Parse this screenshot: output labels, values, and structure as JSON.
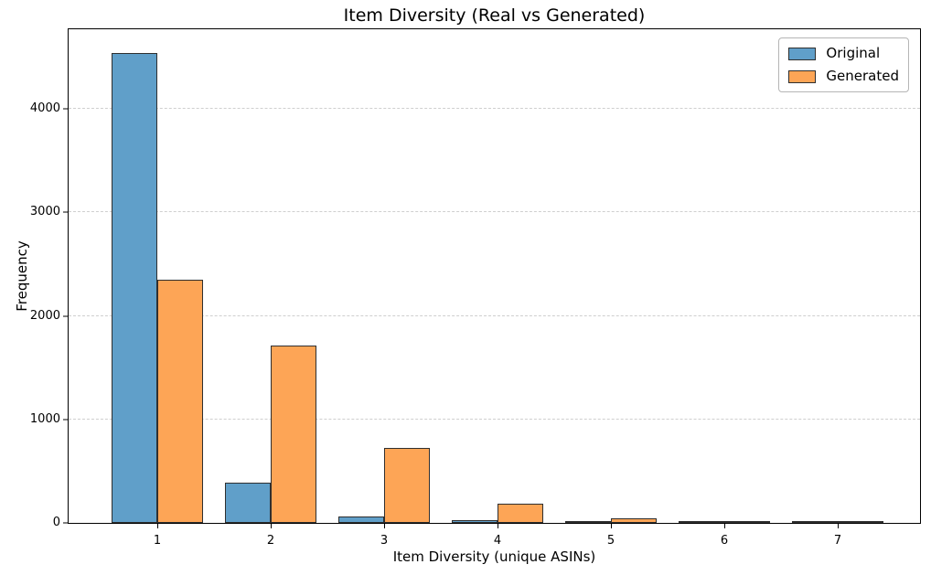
{
  "chart_data": {
    "type": "bar",
    "subtype": "grouped-histogram",
    "title": "Item Diversity (Real vs Generated)",
    "xlabel": "Item Diversity (unique ASINs)",
    "ylabel": "Frequency",
    "categories": [
      "1",
      "2",
      "3",
      "4",
      "5",
      "6",
      "7"
    ],
    "series": [
      {
        "name": "Original",
        "color": "#609fc9",
        "edge_color": "#2f2f2f",
        "values": [
          4540,
          390,
          65,
          25,
          16,
          14,
          2
        ]
      },
      {
        "name": "Generated",
        "color": "#fda556",
        "edge_color": "#2f2f2f",
        "values": [
          2350,
          1710,
          725,
          185,
          40,
          12,
          14
        ]
      }
    ],
    "yticks": [
      0,
      1000,
      2000,
      3000,
      4000
    ],
    "ylim": [
      0,
      4770
    ],
    "grid": "horizontal-dashed",
    "grid_color": "#cfcfcf",
    "legend_position": "top-right",
    "background_color": "#ffffff"
  }
}
